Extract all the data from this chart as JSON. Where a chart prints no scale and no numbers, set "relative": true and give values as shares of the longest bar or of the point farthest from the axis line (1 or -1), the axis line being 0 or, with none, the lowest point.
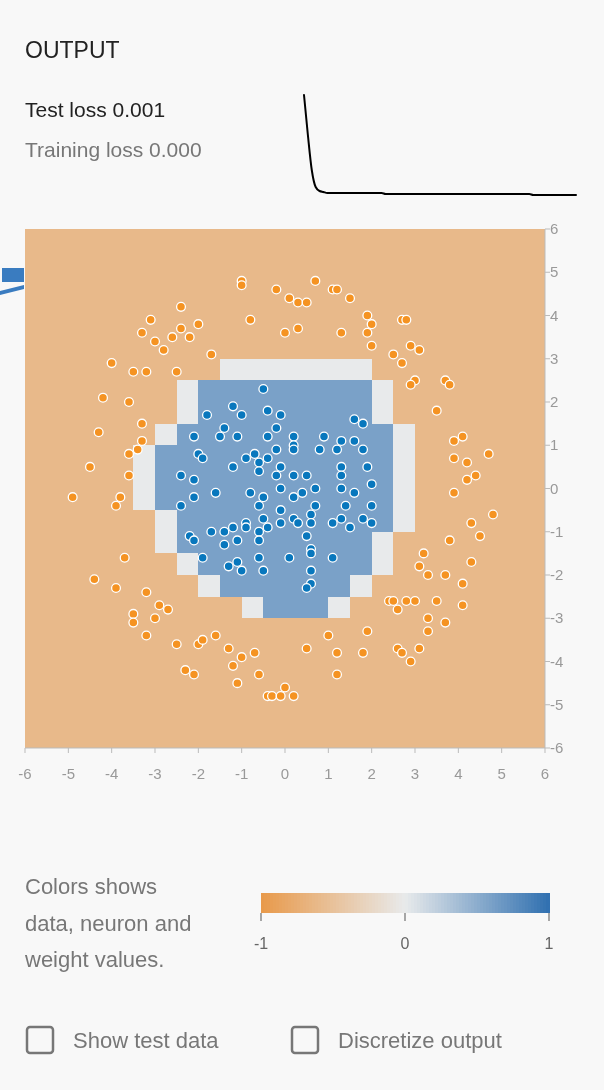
{
  "chart_data": [
    {
      "type": "other",
      "title": "OUTPUT",
      "annotations": [
        "Test loss 0.001",
        "Training loss 0.000"
      ]
    },
    {
      "type": "line",
      "relative": true,
      "categories": [
        null,
        null,
        null,
        null,
        null,
        null,
        null,
        null,
        null,
        null,
        null,
        null,
        null,
        null,
        null,
        null,
        null,
        null,
        null,
        null,
        null,
        null,
        null,
        null,
        null,
        null,
        null,
        null,
        null,
        null,
        null,
        null,
        null,
        null,
        null,
        null,
        null,
        null,
        null,
        null,
        null,
        null,
        null,
        null,
        null,
        null,
        null,
        null,
        null,
        null,
        null,
        null,
        null,
        null,
        null,
        null,
        null,
        null,
        null,
        null,
        null,
        null,
        null,
        null,
        null,
        null,
        null,
        null,
        null,
        null,
        null
      ],
      "series": [
        {
          "color": "#000000",
          "values": [
            1,
            0.6,
            0.25,
            0.08,
            0.04,
            0.03,
            0.02,
            0.02,
            0.02,
            0.02,
            0.02,
            0.02,
            0.02,
            0.02,
            0.02,
            0.02,
            0.02,
            0.02,
            0.02,
            0.02,
            0.02,
            0.01,
            0.01,
            0.01,
            0.01,
            0.01,
            0.01,
            0.01,
            0.01,
            0.01,
            0.01,
            0.01,
            0.01,
            0.01,
            0.01,
            0.01,
            0.01,
            0.01,
            0.01,
            0.01,
            0.01,
            0.01,
            0.01,
            0.01,
            0.01,
            0.01,
            0.01,
            0.01,
            0.01,
            0.01,
            0.01,
            0.01,
            0.01,
            0.01,
            0.01,
            0.01,
            0.01,
            0.01,
            0.01,
            0,
            0,
            0,
            0,
            0,
            0,
            0,
            0,
            0,
            0,
            0,
            0
          ]
        }
      ]
    },
    {
      "type": "heatmap",
      "clabel": "Colors shows data, neuron and weight values.",
      "clim": [
        -1,
        1
      ],
      "cticks": [
        -1,
        0,
        1
      ],
      "annotations": [
        "Show test data",
        "Discretize output"
      ],
      "xlim": [
        -6,
        6
      ],
      "ylim": [
        -6,
        6
      ],
      "xticks": [
        -6,
        -5,
        -4,
        -3,
        -2,
        -1,
        0,
        1,
        2,
        3,
        4,
        5,
        6
      ],
      "yticks": [
        -6,
        -5,
        -4,
        -3,
        -2,
        -1,
        0,
        1,
        2,
        3,
        4,
        5,
        6
      ],
      "cells": [
        [
          -0.6,
          -0.6,
          -0.6,
          -0.6,
          -0.6,
          -0.6,
          -0.6,
          -0.6,
          -0.6,
          -0.6,
          -0.6,
          -0.6,
          -0.6,
          -0.6,
          -0.6,
          -0.6,
          -0.6,
          -0.6,
          -0.6,
          -0.6,
          -0.6,
          -0.6,
          -0.6,
          -0.6
        ],
        [
          -0.6,
          -0.6,
          -0.6,
          -0.6,
          -0.6,
          -0.6,
          -0.6,
          -0.6,
          -0.6,
          -0.6,
          -0.6,
          -0.6,
          -0.6,
          -0.6,
          -0.6,
          -0.6,
          -0.6,
          -0.6,
          -0.6,
          -0.6,
          -0.6,
          -0.6,
          -0.6,
          -0.6
        ],
        [
          -0.6,
          -0.6,
          -0.6,
          -0.6,
          -0.6,
          -0.6,
          -0.6,
          -0.6,
          -0.6,
          -0.6,
          -0.6,
          -0.6,
          -0.6,
          -0.6,
          -0.6,
          -0.6,
          -0.6,
          -0.6,
          -0.6,
          -0.6,
          -0.6,
          -0.6,
          -0.6,
          -0.6
        ],
        [
          -0.6,
          -0.6,
          -0.6,
          -0.6,
          -0.6,
          -0.6,
          -0.6,
          -0.6,
          -0.6,
          -0.6,
          -0.6,
          -0.6,
          -0.6,
          -0.6,
          -0.6,
          -0.6,
          -0.6,
          -0.6,
          -0.6,
          -0.6,
          -0.6,
          -0.6,
          -0.6,
          -0.6
        ],
        [
          -0.6,
          -0.6,
          -0.6,
          -0.6,
          -0.6,
          -0.6,
          -0.6,
          -0.6,
          -0.6,
          -0.6,
          -0.6,
          -0.6,
          -0.6,
          -0.6,
          -0.6,
          -0.6,
          -0.6,
          -0.6,
          -0.6,
          -0.6,
          -0.6,
          -0.6,
          -0.6,
          -0.6
        ],
        [
          -0.6,
          -0.6,
          -0.6,
          -0.6,
          -0.6,
          -0.6,
          -0.6,
          -0.6,
          -0.6,
          -0.6,
          -0.6,
          -0.6,
          -0.6,
          -0.6,
          -0.6,
          -0.6,
          -0.6,
          -0.6,
          -0.6,
          -0.6,
          -0.6,
          -0.6,
          -0.6,
          -0.6
        ],
        [
          -0.6,
          -0.6,
          -0.6,
          -0.6,
          -0.6,
          -0.6,
          -0.6,
          -0.6,
          -0.6,
          0,
          0,
          0,
          0,
          0,
          0,
          0,
          -0.6,
          -0.6,
          -0.6,
          -0.6,
          -0.6,
          -0.6,
          -0.6,
          -0.6
        ],
        [
          -0.6,
          -0.6,
          -0.6,
          -0.6,
          -0.6,
          -0.6,
          -0.6,
          0,
          0.6,
          0.6,
          0.6,
          0.6,
          0.6,
          0.6,
          0.6,
          0.6,
          0,
          -0.6,
          -0.6,
          -0.6,
          -0.6,
          -0.6,
          -0.6,
          -0.6
        ],
        [
          -0.6,
          -0.6,
          -0.6,
          -0.6,
          -0.6,
          -0.6,
          -0.6,
          0,
          0.6,
          0.6,
          0.6,
          0.6,
          0.6,
          0.6,
          0.6,
          0.6,
          0,
          -0.6,
          -0.6,
          -0.6,
          -0.6,
          -0.6,
          -0.6,
          -0.6
        ],
        [
          -0.6,
          -0.6,
          -0.6,
          -0.6,
          -0.6,
          -0.6,
          0,
          0.6,
          0.6,
          0.6,
          0.6,
          0.6,
          0.6,
          0.6,
          0.6,
          0.6,
          0.6,
          0,
          -0.6,
          -0.6,
          -0.6,
          -0.6,
          -0.6,
          -0.6
        ],
        [
          -0.6,
          -0.6,
          -0.6,
          -0.6,
          -0.6,
          0,
          0.6,
          0.6,
          0.6,
          0.6,
          0.6,
          0.6,
          0.6,
          0.6,
          0.6,
          0.6,
          0.6,
          0,
          -0.6,
          -0.6,
          -0.6,
          -0.6,
          -0.6,
          -0.6
        ],
        [
          -0.6,
          -0.6,
          -0.6,
          -0.6,
          -0.6,
          0,
          0.6,
          0.6,
          0.6,
          0.6,
          0.6,
          0.6,
          0.6,
          0.6,
          0.6,
          0.6,
          0.6,
          0,
          -0.6,
          -0.6,
          -0.6,
          -0.6,
          -0.6,
          -0.6
        ],
        [
          -0.6,
          -0.6,
          -0.6,
          -0.6,
          -0.6,
          0,
          0.6,
          0.6,
          0.6,
          0.6,
          0.6,
          0.6,
          0.6,
          0.6,
          0.6,
          0.6,
          0.6,
          0,
          -0.6,
          -0.6,
          -0.6,
          -0.6,
          -0.6,
          -0.6
        ],
        [
          -0.6,
          -0.6,
          -0.6,
          -0.6,
          -0.6,
          -0.6,
          0,
          0.6,
          0.6,
          0.6,
          0.6,
          0.6,
          0.6,
          0.6,
          0.6,
          0.6,
          0.6,
          0,
          -0.6,
          -0.6,
          -0.6,
          -0.6,
          -0.6,
          -0.6
        ],
        [
          -0.6,
          -0.6,
          -0.6,
          -0.6,
          -0.6,
          -0.6,
          0,
          0.6,
          0.6,
          0.6,
          0.6,
          0.6,
          0.6,
          0.6,
          0.6,
          0.6,
          0,
          -0.6,
          -0.6,
          -0.6,
          -0.6,
          -0.6,
          -0.6,
          -0.6
        ],
        [
          -0.6,
          -0.6,
          -0.6,
          -0.6,
          -0.6,
          -0.6,
          -0.6,
          0,
          0.6,
          0.6,
          0.6,
          0.6,
          0.6,
          0.6,
          0.6,
          0.6,
          0,
          -0.6,
          -0.6,
          -0.6,
          -0.6,
          -0.6,
          -0.6,
          -0.6
        ],
        [
          -0.6,
          -0.6,
          -0.6,
          -0.6,
          -0.6,
          -0.6,
          -0.6,
          -0.6,
          0,
          0.6,
          0.6,
          0.6,
          0.6,
          0.6,
          0.6,
          0,
          -0.6,
          -0.6,
          -0.6,
          -0.6,
          -0.6,
          -0.6,
          -0.6,
          -0.6
        ],
        [
          -0.6,
          -0.6,
          -0.6,
          -0.6,
          -0.6,
          -0.6,
          -0.6,
          -0.6,
          -0.6,
          -0.6,
          0,
          0.6,
          0.6,
          0.6,
          0,
          -0.6,
          -0.6,
          -0.6,
          -0.6,
          -0.6,
          -0.6,
          -0.6,
          -0.6,
          -0.6
        ],
        [
          -0.6,
          -0.6,
          -0.6,
          -0.6,
          -0.6,
          -0.6,
          -0.6,
          -0.6,
          -0.6,
          -0.6,
          -0.6,
          -0.6,
          -0.6,
          -0.6,
          -0.6,
          -0.6,
          -0.6,
          -0.6,
          -0.6,
          -0.6,
          -0.6,
          -0.6,
          -0.6,
          -0.6
        ],
        [
          -0.6,
          -0.6,
          -0.6,
          -0.6,
          -0.6,
          -0.6,
          -0.6,
          -0.6,
          -0.6,
          -0.6,
          -0.6,
          -0.6,
          -0.6,
          -0.6,
          -0.6,
          -0.6,
          -0.6,
          -0.6,
          -0.6,
          -0.6,
          -0.6,
          -0.6,
          -0.6,
          -0.6
        ],
        [
          -0.6,
          -0.6,
          -0.6,
          -0.6,
          -0.6,
          -0.6,
          -0.6,
          -0.6,
          -0.6,
          -0.6,
          -0.6,
          -0.6,
          -0.6,
          -0.6,
          -0.6,
          -0.6,
          -0.6,
          -0.6,
          -0.6,
          -0.6,
          -0.6,
          -0.6,
          -0.6,
          -0.6
        ],
        [
          -0.6,
          -0.6,
          -0.6,
          -0.6,
          -0.6,
          -0.6,
          -0.6,
          -0.6,
          -0.6,
          -0.6,
          -0.6,
          -0.6,
          -0.6,
          -0.6,
          -0.6,
          -0.6,
          -0.6,
          -0.6,
          -0.6,
          -0.6,
          -0.6,
          -0.6,
          -0.6,
          -0.6
        ],
        [
          -0.6,
          -0.6,
          -0.6,
          -0.6,
          -0.6,
          -0.6,
          -0.6,
          -0.6,
          -0.6,
          -0.6,
          -0.6,
          -0.6,
          -0.6,
          -0.6,
          -0.6,
          -0.6,
          -0.6,
          -0.6,
          -0.6,
          -0.6,
          -0.6,
          -0.6,
          -0.6,
          -0.6
        ],
        [
          -0.6,
          -0.6,
          -0.6,
          -0.6,
          -0.6,
          -0.6,
          -0.6,
          -0.6,
          -0.6,
          -0.6,
          -0.6,
          -0.6,
          -0.6,
          -0.6,
          -0.6,
          -0.6,
          -0.6,
          -0.6,
          -0.6,
          -0.6,
          -0.6,
          -0.6,
          -0.6,
          -0.6
        ]
      ],
      "series": [
        {
          "type": "scatter",
          "color": "#f59322",
          "x": [
            -1.0,
            -1.0,
            -0.2,
            0.1,
            0.3,
            0.5,
            0.7,
            1.1,
            1.2,
            1.5,
            1.9,
            2.0,
            1.9,
            2.0,
            1.3,
            0.3,
            0.0,
            -0.8,
            -1.7,
            -2.0,
            -2.4,
            -3.1,
            -2.4,
            -3.3,
            -2.6,
            -2.2,
            -3.0,
            -2.8,
            -4.0,
            -3.5,
            -3.2,
            -2.5,
            -4.2,
            -3.6,
            -3.3,
            -4.3,
            -3.3,
            -3.4,
            -3.6,
            -4.5,
            -3.6,
            -4.9,
            -3.8,
            -3.9,
            -3.7,
            -4.4,
            -3.9,
            -3.2,
            -2.9,
            -2.7,
            -3.5,
            -3.5,
            -3.0,
            -3.2,
            -2.5,
            -2.0,
            -1.9,
            -2.3,
            -2.1,
            -1.6,
            -1.3,
            -1.0,
            -0.7,
            -1.2,
            -0.6,
            -1.1,
            -0.4,
            -0.3,
            -0.1,
            0.0,
            0.2,
            0.5,
            1.0,
            1.2,
            1.9,
            1.8,
            1.2,
            2.7,
            2.8,
            2.9,
            3.1,
            2.5,
            2.7,
            3.0,
            2.9,
            3.7,
            3.8,
            3.5,
            4.1,
            3.9,
            4.7,
            3.9,
            4.2,
            4.4,
            4.2,
            3.9,
            4.8,
            4.3,
            4.5,
            3.8,
            3.2,
            3.1,
            3.3,
            3.7,
            4.3,
            4.1,
            2.4,
            2.5,
            2.6,
            2.8,
            3.0,
            3.5,
            4.1,
            3.3,
            3.3,
            3.7,
            3.1,
            2.6,
            2.7,
            2.9
          ],
          "values": [
            4.8,
            4.7,
            4.6,
            4.4,
            4.3,
            4.3,
            4.8,
            4.6,
            4.6,
            4.4,
            4.0,
            3.8,
            3.6,
            3.3,
            3.6,
            3.7,
            3.6,
            3.9,
            3.1,
            3.8,
            4.2,
            3.9,
            3.7,
            3.6,
            3.5,
            3.5,
            3.4,
            3.2,
            2.9,
            2.7,
            2.7,
            2.7,
            2.1,
            2.0,
            1.5,
            1.3,
            1.1,
            0.9,
            0.8,
            0.5,
            0.3,
            -0.2,
            -0.2,
            -0.4,
            -1.6,
            -2.1,
            -2.3,
            -2.4,
            -2.7,
            -2.8,
            -2.9,
            -3.1,
            -3.0,
            -3.4,
            -3.6,
            -3.6,
            -3.5,
            -4.2,
            -4.3,
            -3.4,
            -3.7,
            -3.9,
            -3.8,
            -4.1,
            -4.3,
            -4.5,
            -4.8,
            -4.8,
            -4.8,
            -4.6,
            -4.8,
            -3.7,
            -3.4,
            -3.8,
            -3.3,
            -3.8,
            -4.3,
            3.9,
            3.9,
            3.3,
            3.2,
            3.1,
            2.9,
            2.5,
            2.4,
            2.5,
            2.4,
            1.8,
            1.2,
            1.1,
            0.8,
            0.7,
            0.6,
            0.3,
            0.2,
            -0.1,
            -0.6,
            -0.8,
            -1.1,
            -1.2,
            -1.5,
            -1.8,
            -2.0,
            -2.0,
            -1.7,
            -2.2,
            -2.6,
            -2.6,
            -2.8,
            -2.6,
            -2.6,
            -2.6,
            -2.7,
            -3.0,
            -3.3,
            -3.1,
            -3.7,
            -3.7,
            -3.8,
            -4.0
          ]
        },
        {
          "type": "scatter",
          "color": "#0877bd",
          "x": [
            -0.5,
            -1.8,
            -1.2,
            -1.0,
            -0.4,
            -0.1,
            1.6,
            1.8,
            -0.2,
            -1.4,
            -1.5,
            -1.1,
            -0.4,
            0.2,
            0.2,
            0.2,
            0.9,
            0.8,
            1.3,
            1.2,
            1.6,
            1.8,
            -2.0,
            -1.9,
            -0.9,
            -0.7,
            -0.2,
            -0.4,
            -1.2,
            -0.6,
            -0.6,
            -0.1,
            0.2,
            0.5,
            1.3,
            1.3,
            1.9,
            2.0,
            1.3,
            1.6,
            0.7,
            -0.2,
            -0.1,
            -1.6,
            -0.8,
            -2.1,
            -2.1,
            -2.4,
            -2.1,
            -2.4,
            -2.2,
            -2.1,
            -1.9,
            -0.5,
            -0.6,
            0.2,
            0.4,
            0.7,
            2.0,
            1.4,
            1.3,
            1.1,
            1.5,
            1.8,
            2.0,
            0.6,
            0.6,
            0.2,
            0.3,
            -0.1,
            -0.1,
            -0.4,
            -0.5,
            -0.6,
            -0.6,
            -0.9,
            -0.9,
            -1.2,
            -1.4,
            -1.7,
            -1.4,
            -1.1,
            -1.3,
            -1.1,
            -1.0,
            -0.6,
            -0.5,
            0.1,
            0.5,
            0.6,
            0.6,
            0.6,
            0.6,
            0.5,
            1.1
          ],
          "values": [
            2.3,
            1.7,
            1.9,
            1.7,
            1.8,
            1.7,
            1.6,
            1.5,
            1.4,
            1.4,
            1.2,
            1.2,
            1.2,
            1.2,
            1.0,
            0.9,
            1.2,
            0.9,
            1.1,
            0.9,
            1.1,
            0.9,
            0.8,
            0.7,
            0.7,
            0.8,
            0.9,
            0.7,
            0.5,
            0.6,
            0.4,
            0.5,
            0.3,
            0.3,
            0.5,
            0.3,
            0.5,
            0.1,
            0.0,
            -0.1,
            0.0,
            0.3,
            0.0,
            -0.1,
            -0.1,
            0.2,
            1.2,
            0.3,
            -0.2,
            -0.4,
            -1.1,
            -1.2,
            -1.6,
            -0.2,
            -0.4,
            -0.2,
            -0.1,
            -0.4,
            -0.4,
            -0.4,
            -0.7,
            -0.8,
            -0.9,
            -0.7,
            -0.8,
            -0.6,
            -0.8,
            -0.7,
            -0.8,
            -0.5,
            -0.8,
            -0.9,
            -0.7,
            -1.0,
            -1.2,
            -0.8,
            -0.9,
            -0.9,
            -1.0,
            -1.0,
            -1.3,
            -1.2,
            -1.8,
            -1.7,
            -1.9,
            -1.6,
            -1.9,
            -1.6,
            -1.1,
            -1.4,
            -1.5,
            -1.9,
            -2.2,
            -2.3,
            -1.6
          ]
        }
      ]
    }
  ]
}
